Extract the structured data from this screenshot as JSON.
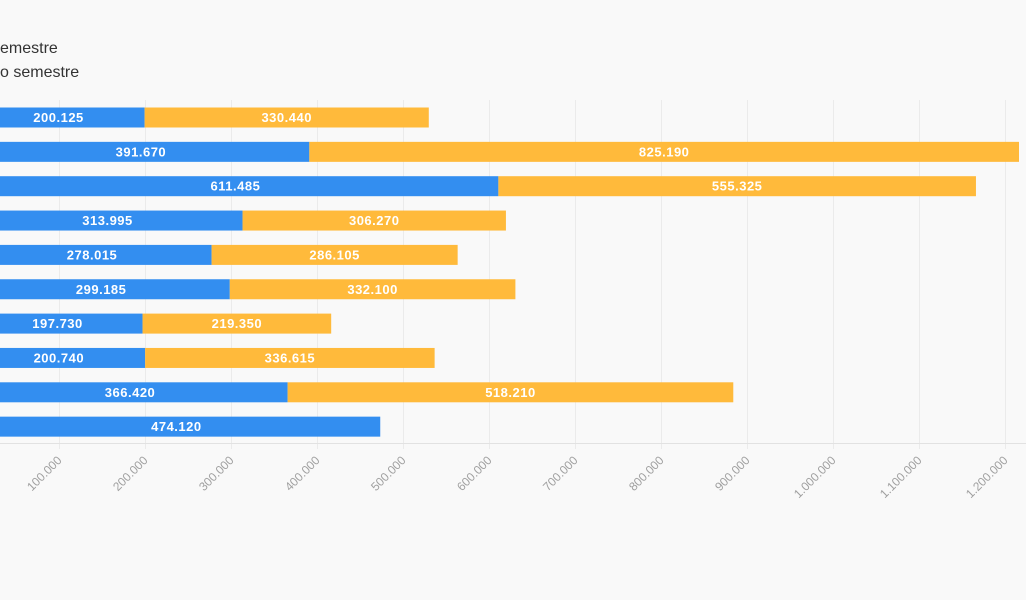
{
  "chart_data": {
    "type": "bar",
    "orientation": "horizontal",
    "stacked": true,
    "series": [
      {
        "name": "emestre",
        "color": "#338ef0",
        "values": [
          200125,
          391670,
          611485,
          313995,
          278015,
          299185,
          197730,
          200740,
          366420,
          474120
        ],
        "labels": [
          "200.125",
          "391.670",
          "611.485",
          "313.995",
          "278.015",
          "299.185",
          "197.730",
          "200.740",
          "366.420",
          "474.120"
        ]
      },
      {
        "name": "o semestre",
        "color": "#ffba3b",
        "values": [
          330440,
          825190,
          555325,
          306270,
          286105,
          332100,
          219350,
          336615,
          518210,
          null
        ],
        "labels": [
          "330.440",
          "825.190",
          "555.325",
          "306.270",
          "286.105",
          "332.100",
          "219.350",
          "336.615",
          "518.210",
          ""
        ]
      }
    ],
    "x_ticks": [
      100000,
      200000,
      300000,
      400000,
      500000,
      600000,
      700000,
      800000,
      900000,
      1000000,
      1100000,
      1200000
    ],
    "x_tick_labels": [
      "100.000",
      "200.000",
      "300.000",
      "400.000",
      "500.000",
      "600.000",
      "700.000",
      "800.000",
      "900.000",
      "1.000.000",
      "1.100.000",
      "1.200.000"
    ],
    "legend_position": "top-left",
    "grid": true
  }
}
